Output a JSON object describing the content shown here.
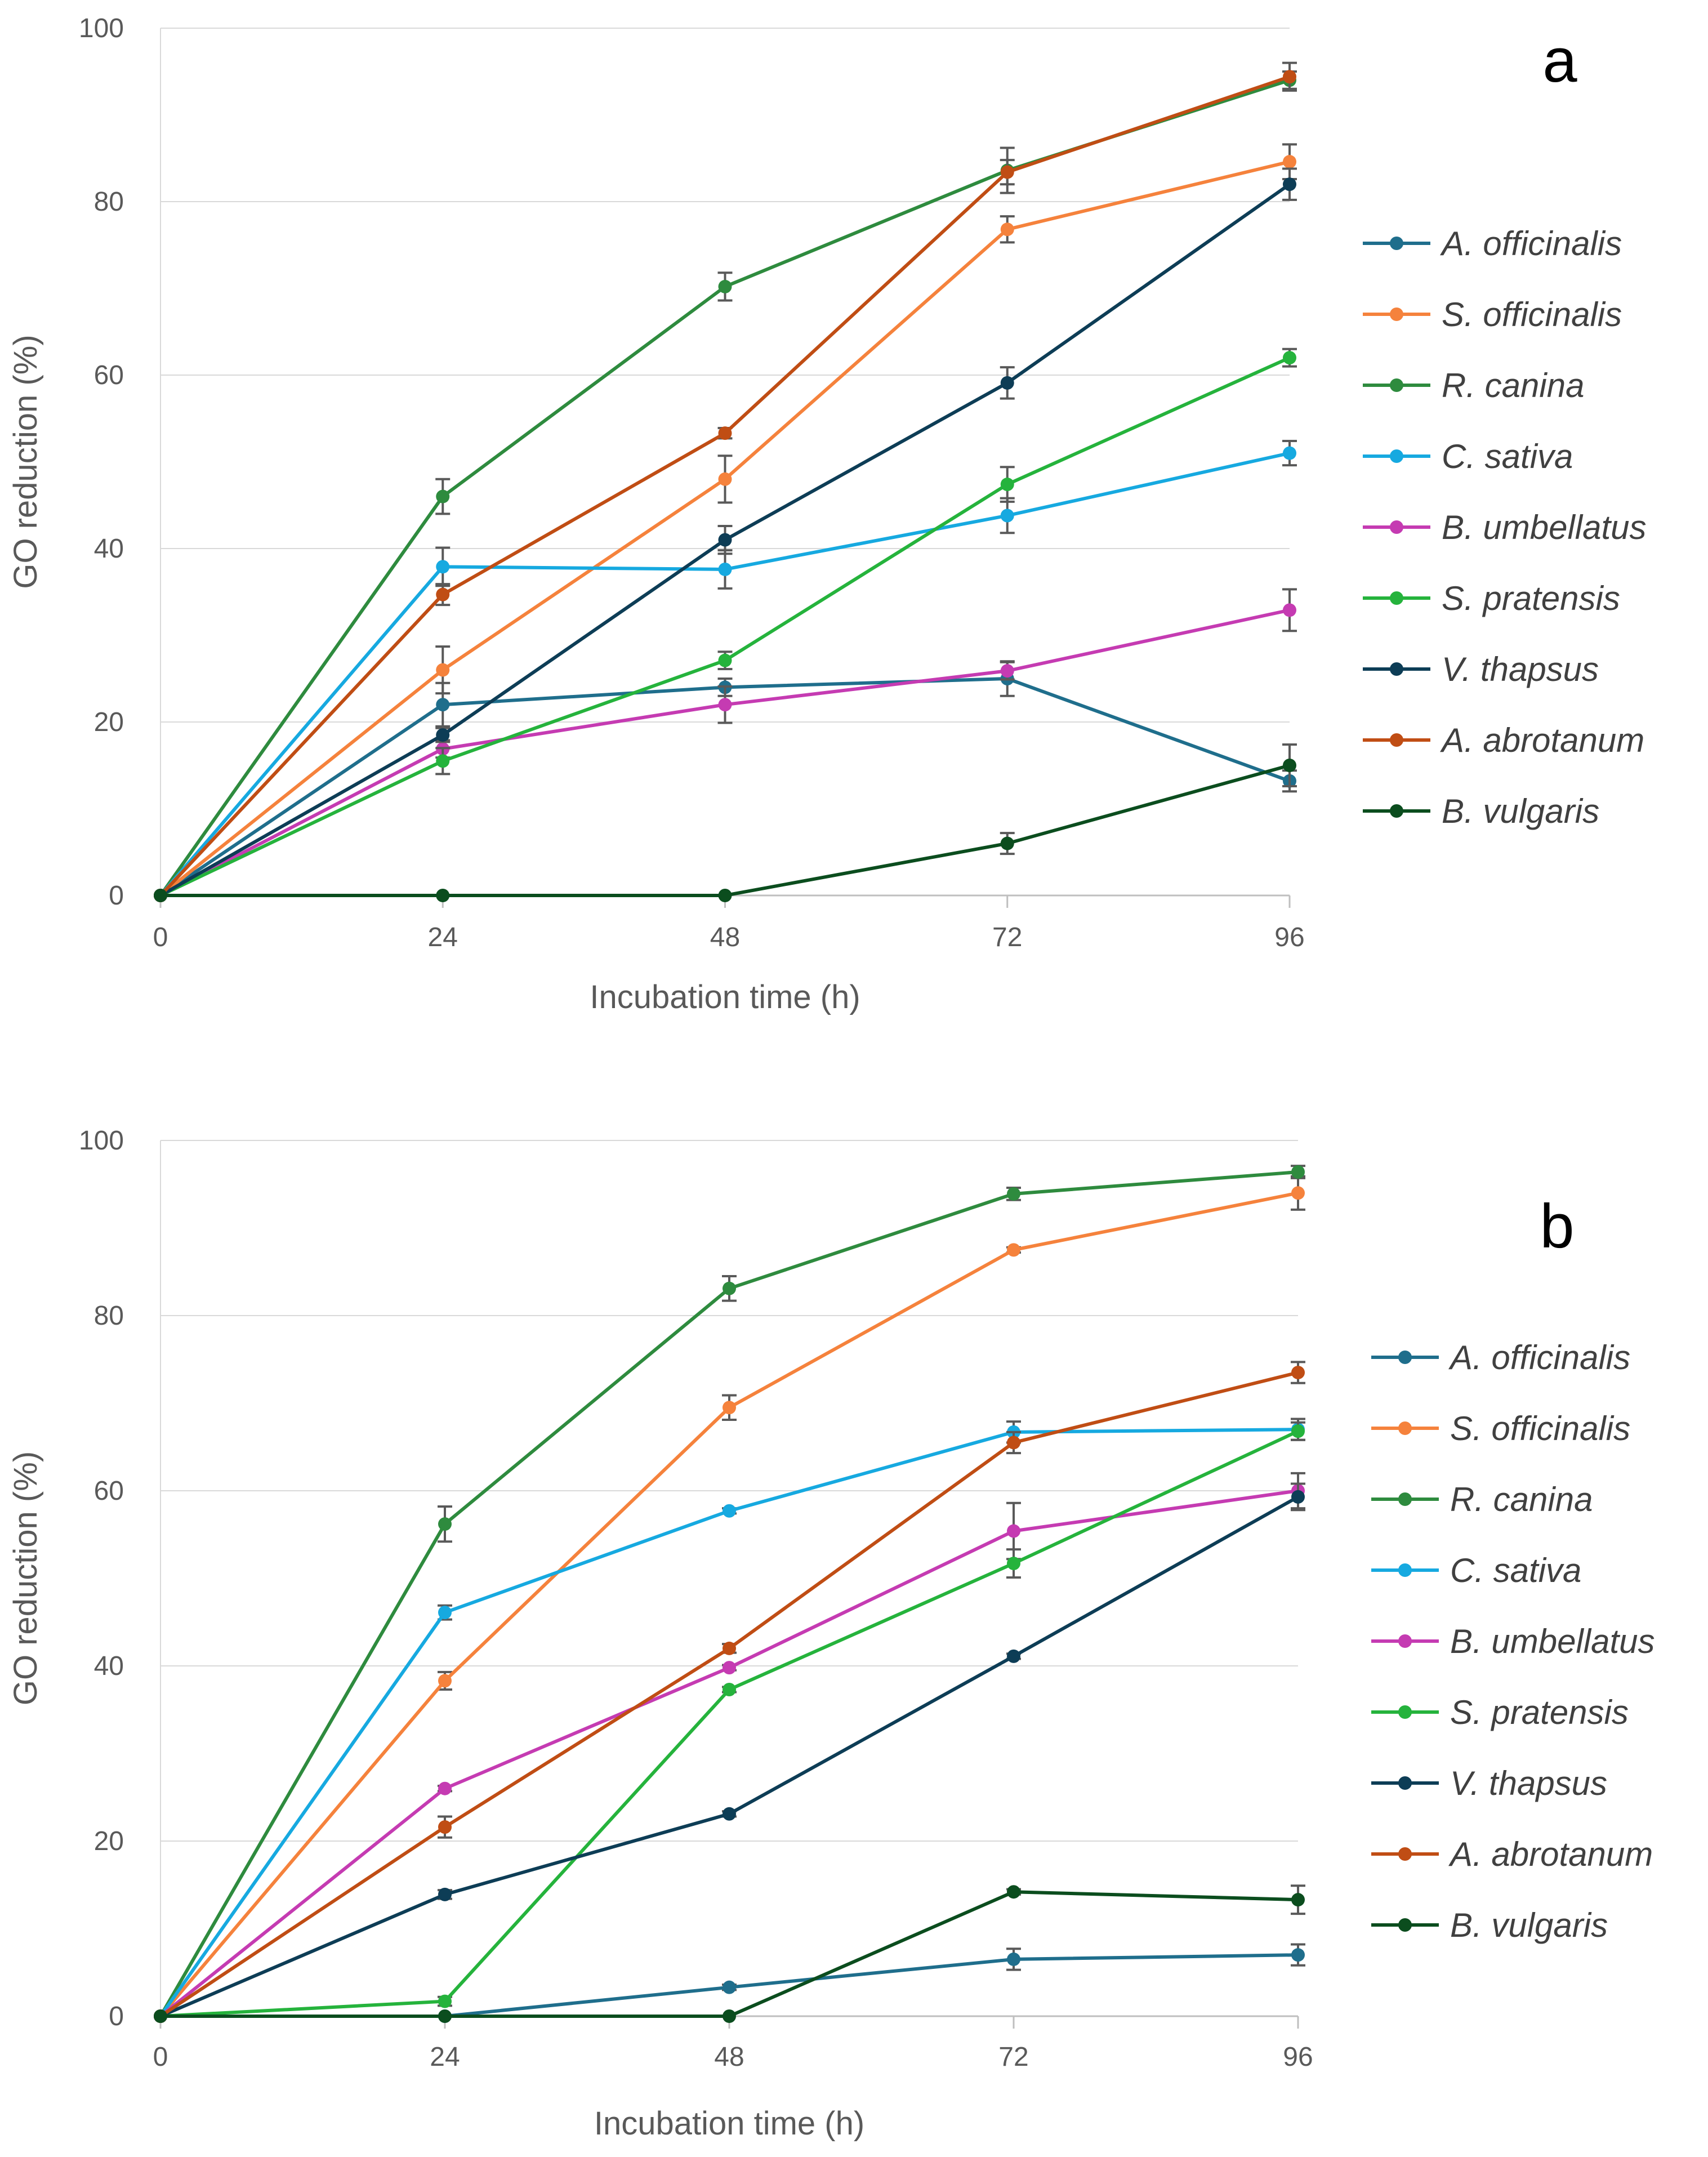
{
  "chart_data": [
    {
      "type": "line",
      "panel_label": "a",
      "xlabel": "Incubation time (h)",
      "ylabel": "GO reduction (%)",
      "x": [
        0,
        24,
        48,
        72,
        96
      ],
      "xlim": [
        0,
        96
      ],
      "ylim": [
        0,
        100
      ],
      "yticks": [
        0,
        20,
        40,
        60,
        80,
        100
      ],
      "grid": "horizontal",
      "legend": "right",
      "series": [
        {
          "name": "A. officinalis",
          "color": "#1f6e8c",
          "values": [
            0,
            22,
            24,
            25,
            13.2
          ],
          "errors": [
            0,
            2.5,
            1,
            2,
            1.2
          ]
        },
        {
          "name": "S. officinalis",
          "color": "#f5823c",
          "values": [
            0,
            26,
            48,
            76.8,
            84.6
          ],
          "errors": [
            0,
            2.7,
            2.7,
            1.5,
            2
          ]
        },
        {
          "name": "R. canina",
          "color": "#2e8b3e",
          "values": [
            0,
            46,
            70.2,
            83.6,
            94
          ],
          "errors": [
            0,
            2,
            1.6,
            2.6,
            1
          ]
        },
        {
          "name": "C. sativa",
          "color": "#16a9e0",
          "values": [
            0,
            37.9,
            37.6,
            43.8,
            51
          ],
          "errors": [
            0,
            2.2,
            2.2,
            2,
            1.4
          ]
        },
        {
          "name": "B. umbellatus",
          "color": "#c53bb2",
          "values": [
            0,
            16.9,
            22,
            25.9,
            32.9
          ],
          "errors": [
            0,
            1,
            2.1,
            1,
            2.4
          ]
        },
        {
          "name": "S. pratensis",
          "color": "#25b33c",
          "values": [
            0,
            15.5,
            27.1,
            47.4,
            62
          ],
          "errors": [
            0,
            1.5,
            1,
            2,
            1
          ]
        },
        {
          "name": "V. thapsus",
          "color": "#0d3d56",
          "values": [
            0,
            18.5,
            41,
            59.1,
            82
          ],
          "errors": [
            0,
            0.8,
            1.6,
            1.8,
            1.8
          ]
        },
        {
          "name": "A. abrotanum",
          "color": "#c04d14",
          "values": [
            0,
            34.7,
            53.3,
            83.4,
            94.4
          ],
          "errors": [
            0,
            1.2,
            0.6,
            1.4,
            1.6
          ]
        },
        {
          "name": "B. vulgaris",
          "color": "#0b4d1e",
          "values": [
            0,
            0,
            0,
            6,
            15
          ],
          "errors": [
            0,
            0,
            0,
            1.2,
            2.4
          ]
        }
      ]
    },
    {
      "type": "line",
      "panel_label": "b",
      "xlabel": "Incubation time (h)",
      "ylabel": "GO reduction (%)",
      "x": [
        0,
        24,
        48,
        72,
        96
      ],
      "xlim": [
        0,
        96
      ],
      "ylim": [
        0,
        100
      ],
      "yticks": [
        0,
        20,
        40,
        60,
        80,
        100
      ],
      "grid": "horizontal",
      "legend": "right",
      "series": [
        {
          "name": "A.  officinalis",
          "color": "#1f6e8c",
          "values": [
            0,
            0,
            3.3,
            6.5,
            7
          ],
          "errors": [
            0,
            0,
            0.3,
            1.2,
            1.2
          ]
        },
        {
          "name": "S. officinalis",
          "color": "#f5823c",
          "values": [
            0,
            38.3,
            69.5,
            87.5,
            94
          ],
          "errors": [
            0,
            1,
            1.4,
            0.3,
            1.9
          ]
        },
        {
          "name": "R. canina",
          "color": "#2e8b3e",
          "values": [
            0,
            56.2,
            83.1,
            93.9,
            96.4
          ],
          "errors": [
            0,
            2,
            1.4,
            0.7,
            0.7
          ]
        },
        {
          "name": "C. sativa",
          "color": "#16a9e0",
          "values": [
            0,
            46.1,
            57.7,
            66.7,
            67
          ],
          "errors": [
            0,
            0.8,
            0.3,
            1.2,
            1.2
          ]
        },
        {
          "name": "B. umbellatus",
          "color": "#c53bb2",
          "values": [
            0,
            26,
            39.8,
            55.4,
            60
          ],
          "errors": [
            0,
            0.3,
            0.3,
            3.2,
            2
          ]
        },
        {
          "name": "S. pratensis",
          "color": "#25b33c",
          "values": [
            0,
            1.7,
            37.3,
            51.7,
            66.8
          ],
          "errors": [
            0,
            0.5,
            0.3,
            1.6,
            1
          ]
        },
        {
          "name": "V. thapsus",
          "color": "#0d3d56",
          "values": [
            0,
            13.9,
            23.1,
            41.1,
            59.3
          ],
          "errors": [
            0,
            0.5,
            0.3,
            0.3,
            1.5
          ]
        },
        {
          "name": "A. abrotanum",
          "color": "#c04d14",
          "values": [
            0,
            21.6,
            42,
            65.5,
            73.5
          ],
          "errors": [
            0,
            1.2,
            0.5,
            1.2,
            1.2
          ]
        },
        {
          "name": "B. vulgaris",
          "color": "#0b4d1e",
          "values": [
            0,
            0,
            0,
            14.2,
            13.3
          ],
          "errors": [
            0,
            0,
            0,
            0.3,
            1.6
          ]
        }
      ]
    }
  ]
}
